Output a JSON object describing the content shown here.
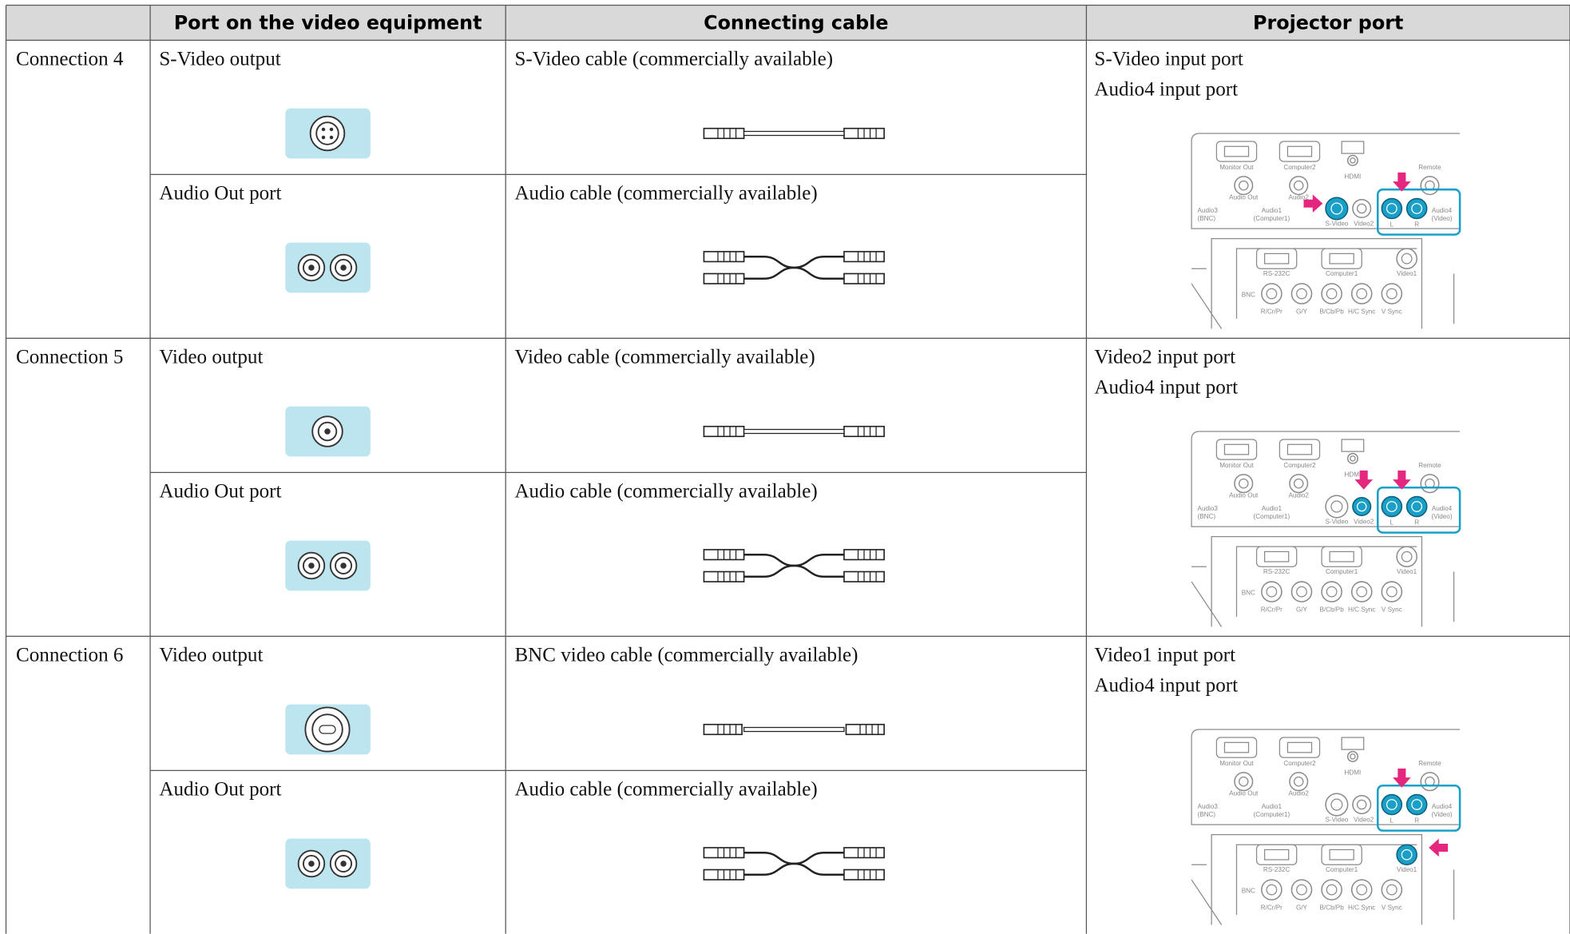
{
  "table": {
    "headers": [
      "Port on the video equipment",
      "Connecting cable",
      "Projector port"
    ],
    "rows": [
      {
        "connection": "Connection 4",
        "items": [
          {
            "port": "S-Video output",
            "cable": "S-Video cable (commercially available)"
          },
          {
            "port": "Audio Out port",
            "cable": "Audio cable (commercially available)"
          }
        ],
        "projector": [
          "S-Video input port",
          "Audio4 input port"
        ]
      },
      {
        "connection": "Connection 5",
        "items": [
          {
            "port": "Video output",
            "cable": "Video cable (commercially available)"
          },
          {
            "port": "Audio Out port",
            "cable": "Audio cable (commercially available)"
          }
        ],
        "projector": [
          "Video2 input port",
          "Audio4 input port"
        ]
      },
      {
        "connection": "Connection 6",
        "items": [
          {
            "port": "Video output",
            "cable": "BNC video cable (commercially available)"
          },
          {
            "port": "Audio Out port",
            "cable": "Audio cable (commercially available)"
          }
        ],
        "projector": [
          "Video1 input port",
          "Audio4 input port"
        ]
      }
    ]
  },
  "panel_labels": [
    "Monitor Out",
    "Computer2",
    "HDMI",
    "Audio Out",
    "Audio2",
    "Remote",
    "Audio3",
    "(BNC)",
    "Audio1",
    "(Computer1)",
    "S-Video",
    "Video2",
    "Audio4",
    "(Video)",
    "L",
    "R",
    "RS-232C",
    "Computer1",
    "Video1",
    "BNC",
    "R/Cr/Pr",
    "G/Y",
    "B/Cb/Pb",
    "H/C Sync",
    "V Sync"
  ]
}
